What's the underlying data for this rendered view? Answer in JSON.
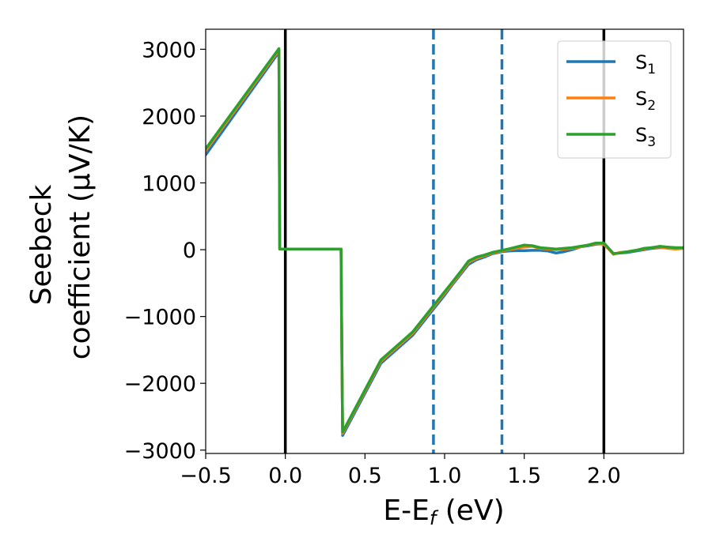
{
  "chart_data": {
    "type": "line",
    "xlabel": "E-E",
    "xlabel_sub": "f",
    "xlabel_unit": " (eV)",
    "ylabel_line1": "Seebeck",
    "ylabel_line2": "coefficient  (μV/K)",
    "xlim": [
      -0.5,
      2.5
    ],
    "ylim": [
      -3050,
      3300
    ],
    "x_ticks": [
      -0.5,
      0.0,
      0.5,
      1.0,
      1.5,
      2.0
    ],
    "x_tick_labels": [
      "−0.5",
      "0.0",
      "0.5",
      "1.0",
      "1.5",
      "2.0"
    ],
    "y_ticks": [
      -3000,
      -2000,
      -1000,
      0,
      1000,
      2000,
      3000
    ],
    "y_tick_labels": [
      "−3000",
      "−2000",
      "−1000",
      "0",
      "1000",
      "2000",
      "3000"
    ],
    "grid": false,
    "legend_position": "top-right",
    "vertical_lines": [
      {
        "x": 0.0,
        "style": "solid",
        "color": "#000000"
      },
      {
        "x": 0.93,
        "style": "dashed",
        "color": "#1f77b4"
      },
      {
        "x": 1.36,
        "style": "dashed",
        "color": "#1f77b4"
      },
      {
        "x": 2.0,
        "style": "solid",
        "color": "#000000"
      }
    ],
    "series": [
      {
        "name": "S",
        "sub": "1",
        "color": "#1f77b4",
        "x": [
          -0.5,
          -0.04,
          -0.035,
          0.35,
          0.355,
          0.36,
          0.6,
          0.8,
          0.93,
          1.0,
          1.05,
          1.1,
          1.15,
          1.2,
          1.25,
          1.3,
          1.36,
          1.4,
          1.45,
          1.5,
          1.55,
          1.6,
          1.65,
          1.7,
          1.75,
          1.8,
          1.85,
          1.9,
          1.95,
          2.0,
          2.03,
          2.06,
          2.1,
          2.15,
          2.2,
          2.25,
          2.3,
          2.35,
          2.4,
          2.45,
          2.5
        ],
        "y": [
          1420,
          2960,
          10,
          10,
          -1500,
          -2780,
          -1700,
          -1280,
          -890,
          -680,
          -520,
          -370,
          -220,
          -150,
          -110,
          -60,
          -30,
          -20,
          -15,
          -15,
          -10,
          -10,
          -20,
          -50,
          -30,
          0,
          40,
          60,
          80,
          90,
          20,
          -60,
          -50,
          -40,
          -20,
          0,
          20,
          30,
          30,
          20,
          20
        ]
      },
      {
        "name": "S",
        "sub": "2",
        "color": "#ff7f0e",
        "x": [
          -0.5,
          -0.04,
          -0.035,
          0.35,
          0.355,
          0.36,
          0.6,
          0.8,
          0.93,
          1.0,
          1.05,
          1.1,
          1.15,
          1.2,
          1.25,
          1.3,
          1.36,
          1.4,
          1.45,
          1.5,
          1.55,
          1.6,
          1.65,
          1.7,
          1.75,
          1.8,
          1.85,
          1.9,
          1.95,
          2.0,
          2.03,
          2.06,
          2.1,
          2.15,
          2.2,
          2.25,
          2.3,
          2.35,
          2.4,
          2.45,
          2.5
        ],
        "y": [
          1480,
          2990,
          10,
          10,
          -1500,
          -2750,
          -1670,
          -1250,
          -860,
          -650,
          -500,
          -350,
          -190,
          -130,
          -90,
          -50,
          -20,
          0,
          20,
          40,
          50,
          20,
          10,
          0,
          10,
          20,
          40,
          70,
          90,
          80,
          10,
          -70,
          -40,
          -30,
          -10,
          10,
          30,
          40,
          20,
          10,
          20
        ]
      },
      {
        "name": "S",
        "sub": "3",
        "color": "#2ca02c",
        "x": [
          -0.5,
          -0.04,
          -0.035,
          0.35,
          0.355,
          0.36,
          0.6,
          0.8,
          0.93,
          1.0,
          1.05,
          1.1,
          1.15,
          1.2,
          1.25,
          1.3,
          1.36,
          1.4,
          1.45,
          1.5,
          1.55,
          1.6,
          1.65,
          1.7,
          1.75,
          1.8,
          1.85,
          1.9,
          1.95,
          2.0,
          2.03,
          2.06,
          2.1,
          2.15,
          2.2,
          2.25,
          2.3,
          2.35,
          2.4,
          2.45,
          2.5
        ],
        "y": [
          1510,
          3010,
          10,
          10,
          -1500,
          -2730,
          -1650,
          -1230,
          -840,
          -630,
          -480,
          -330,
          -170,
          -110,
          -80,
          -40,
          -10,
          10,
          40,
          70,
          60,
          30,
          20,
          10,
          20,
          30,
          50,
          70,
          100,
          100,
          20,
          -60,
          -50,
          -30,
          -10,
          20,
          30,
          50,
          40,
          30,
          30
        ]
      }
    ]
  }
}
